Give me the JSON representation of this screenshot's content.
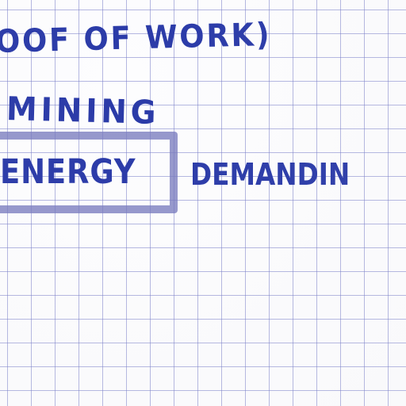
{
  "notes": {
    "line1": "OOF OF WORK)",
    "line2": "MINING",
    "line3_boxed": "ENERGY",
    "line3_rest": "DEMANDIN"
  },
  "colors": {
    "ink": "#2a3aa8",
    "grid": "#7c80c8",
    "box": "#7a7bbe",
    "paper": "#fdfdfe"
  }
}
